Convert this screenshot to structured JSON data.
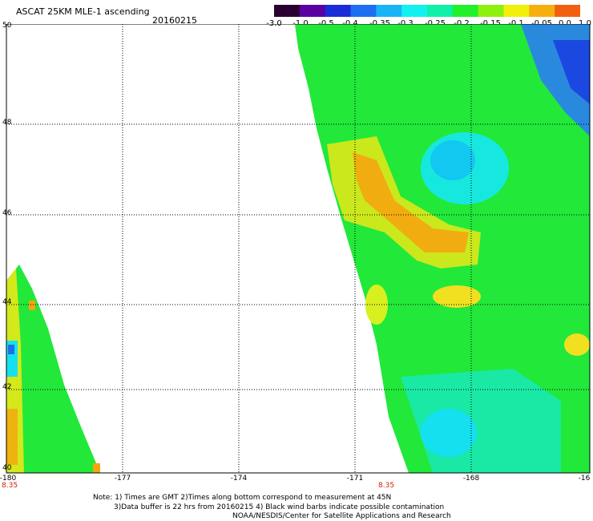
{
  "header": {
    "title": "ASCAT 25KM MLE-1 ascending",
    "date": "20160215"
  },
  "colorbar": {
    "labels": [
      "-3.0",
      "-1.0",
      "-0.5",
      "-0.4",
      "-0.35",
      "-0.3",
      "-0.25",
      "-0.2",
      "-0.15",
      "-0.1",
      "-0.05",
      "0.0",
      "1.0"
    ],
    "colors": [
      "#2a0030",
      "#5a00a0",
      "#1a2cd8",
      "#1e6ef0",
      "#19b4f5",
      "#12f0f0",
      "#10f0a8",
      "#22f02a",
      "#8ef00f",
      "#f0f00a",
      "#f5b00f",
      "#f06010"
    ]
  },
  "map": {
    "lat_labels": [
      "50",
      "48",
      "46",
      "44",
      "42",
      "40"
    ],
    "lon_labels": [
      "-180",
      "-177",
      "-174",
      "-171",
      "-168",
      "-16"
    ],
    "time_labels": [
      "8.35",
      "8.35"
    ]
  },
  "footer": {
    "line1": "Note: 1) Times are GMT 2)Times along bottom correspond to measurement at 45N",
    "line2": "3)Data buffer is 22 hrs from 20160215 4) Black wind barbs indicate possible contamination",
    "line3": "NOAA/NESDIS/Center for Satellite Applications and Research"
  }
}
